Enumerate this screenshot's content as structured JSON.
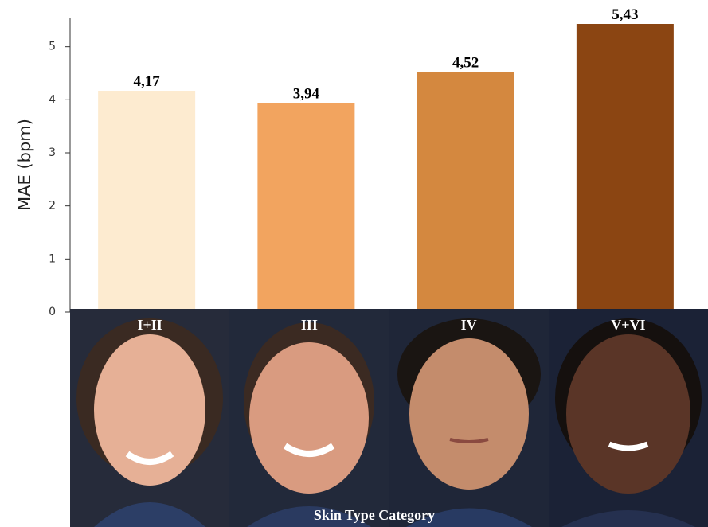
{
  "chart_data": {
    "type": "bar",
    "categories": [
      "I+II",
      "III",
      "IV",
      "V+VI"
    ],
    "values": [
      4.17,
      3.94,
      4.52,
      5.43
    ],
    "value_labels": [
      "4,17",
      "3,94",
      "4,52",
      "5,43"
    ],
    "colors": [
      "#fdebd0",
      "#f2a45f",
      "#d4883f",
      "#8b4512"
    ],
    "ylabel": "MAE (bpm)",
    "xlabel": "Skin Type Category",
    "ylim": [
      0,
      5.55
    ],
    "yticks": [
      0,
      1,
      2,
      3,
      4,
      5
    ]
  }
}
